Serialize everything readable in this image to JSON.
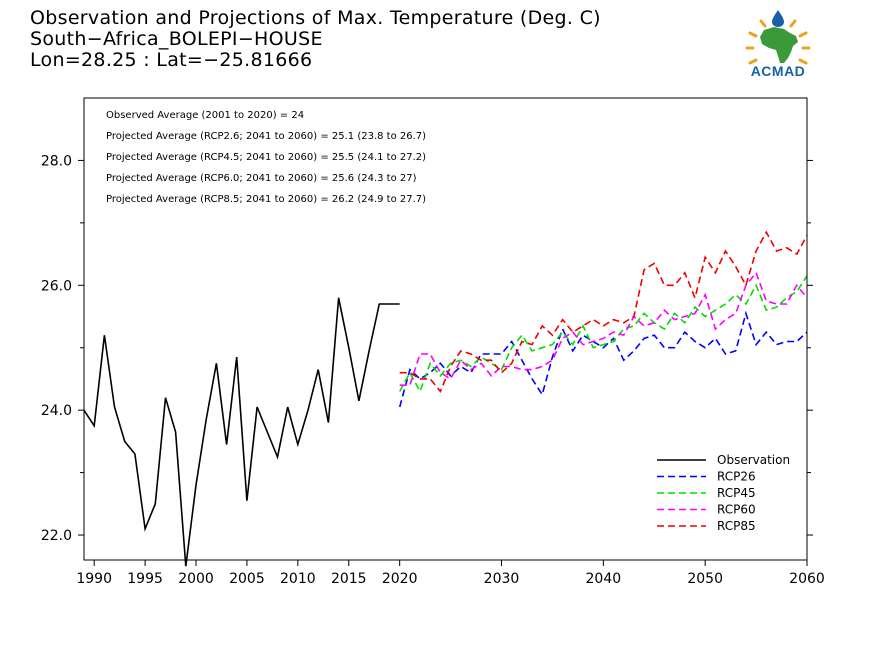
{
  "title_lines": [
    "Observation and Projections of Max. Temperature (Deg. C)",
    "South−Africa_BOLEPI−HOUSE",
    "Lon=28.25 : Lat=−25.81666"
  ],
  "logo": {
    "text": "ACMAD",
    "colors": {
      "africa": "#3a9a3a",
      "sun": "#f0a020",
      "drop": "#1a5fa8"
    }
  },
  "annotations": [
    "Observed Average (2001 to 2020) = 24",
    "Projected Average (RCP2.6; 2041 to 2060) = 25.1 (23.8 to 26.7)",
    "Projected Average (RCP4.5; 2041 to 2060) = 25.5 (24.1 to 27.2)",
    "Projected Average (RCP6.0; 2041 to 2060) = 25.6 (24.3 to 27)",
    "Projected Average (RCP8.5; 2041 to 2060) = 26.2 (24.9 to 27.7)"
  ],
  "chart_data": {
    "type": "line",
    "xlim": [
      1989,
      2060
    ],
    "ylim": [
      21.6,
      29.0
    ],
    "x_ticks": [
      {
        "v": 1990,
        "label": "1990"
      },
      {
        "v": 1995,
        "label": "1995"
      },
      {
        "v": 2000,
        "label": "2000"
      },
      {
        "v": 2005,
        "label": "2005"
      },
      {
        "v": 2010,
        "label": "2010"
      },
      {
        "v": 2015,
        "label": "2015"
      },
      {
        "v": 2020,
        "label": "2020"
      },
      {
        "v": 2030,
        "label": "2030"
      },
      {
        "v": 2040,
        "label": "2040"
      },
      {
        "v": 2050,
        "label": "2050"
      },
      {
        "v": 2060,
        "label": "2060"
      }
    ],
    "y_ticks": [
      {
        "v": 22.0,
        "label": "22.0"
      },
      {
        "v": 24.0,
        "label": "24.0"
      },
      {
        "v": 26.0,
        "label": "26.0"
      },
      {
        "v": 28.0,
        "label": "28.0"
      }
    ],
    "legend_position": "bottom-right",
    "series": [
      {
        "name": "Observation",
        "color": "#000000",
        "dashed": false,
        "x": [
          1989,
          1990,
          1991,
          1992,
          1993,
          1994,
          1995,
          1996,
          1997,
          1998,
          1999,
          2000,
          2001,
          2002,
          2003,
          2004,
          2005,
          2006,
          2007,
          2008,
          2009,
          2010,
          2011,
          2012,
          2013,
          2014,
          2015,
          2016,
          2017,
          2018,
          2019,
          2020
        ],
        "y": [
          24.0,
          23.75,
          25.2,
          24.05,
          23.5,
          23.3,
          22.1,
          22.5,
          24.2,
          23.65,
          21.5,
          22.8,
          23.85,
          24.75,
          23.45,
          24.85,
          22.55,
          24.05,
          23.65,
          23.25,
          24.05,
          23.45,
          24.0,
          24.65,
          23.8,
          25.8,
          25.0,
          24.15,
          24.95,
          25.7,
          25.7,
          25.7
        ]
      },
      {
        "name": "RCP26",
        "color": "#0000ff",
        "dashed": true,
        "x": [
          2020,
          2021,
          2022,
          2023,
          2024,
          2025,
          2026,
          2027,
          2028,
          2029,
          2030,
          2031,
          2032,
          2033,
          2034,
          2035,
          2036,
          2037,
          2038,
          2039,
          2040,
          2041,
          2042,
          2043,
          2044,
          2045,
          2046,
          2047,
          2048,
          2049,
          2050,
          2051,
          2052,
          2053,
          2054,
          2055,
          2056,
          2057,
          2058,
          2059,
          2060
        ],
        "y": [
          24.05,
          24.65,
          24.5,
          24.6,
          24.75,
          24.55,
          24.7,
          24.6,
          24.9,
          24.9,
          24.9,
          25.1,
          24.8,
          24.5,
          24.25,
          24.85,
          25.3,
          24.95,
          25.2,
          25.1,
          25.0,
          25.15,
          24.8,
          24.95,
          25.15,
          25.2,
          25.0,
          25.0,
          25.25,
          25.1,
          25.0,
          25.15,
          24.9,
          24.95,
          25.55,
          25.05,
          25.25,
          25.05,
          25.1,
          25.1,
          25.25
        ]
      },
      {
        "name": "RCP45",
        "color": "#00dd00",
        "dashed": true,
        "x": [
          2020,
          2021,
          2022,
          2023,
          2024,
          2025,
          2026,
          2027,
          2028,
          2029,
          2030,
          2031,
          2032,
          2033,
          2034,
          2035,
          2036,
          2037,
          2038,
          2039,
          2040,
          2041,
          2042,
          2043,
          2044,
          2045,
          2046,
          2047,
          2048,
          2049,
          2050,
          2051,
          2052,
          2053,
          2054,
          2055,
          2056,
          2057,
          2058,
          2059,
          2060
        ],
        "y": [
          24.3,
          24.6,
          24.3,
          24.75,
          24.55,
          24.75,
          24.8,
          24.7,
          24.85,
          24.75,
          24.65,
          25.0,
          25.2,
          24.95,
          25.0,
          25.05,
          25.25,
          25.05,
          25.35,
          25.0,
          25.05,
          25.1,
          25.3,
          25.35,
          25.55,
          25.4,
          25.3,
          25.55,
          25.4,
          25.65,
          25.5,
          25.6,
          25.7,
          25.85,
          25.7,
          26.0,
          25.6,
          25.65,
          25.8,
          25.9,
          26.15
        ]
      },
      {
        "name": "RCP60",
        "color": "#ff00ff",
        "dashed": true,
        "x": [
          2020,
          2021,
          2022,
          2023,
          2024,
          2025,
          2026,
          2027,
          2028,
          2029,
          2030,
          2031,
          2032,
          2033,
          2034,
          2035,
          2036,
          2037,
          2038,
          2039,
          2040,
          2041,
          2042,
          2043,
          2044,
          2045,
          2046,
          2047,
          2048,
          2049,
          2050,
          2051,
          2052,
          2053,
          2054,
          2055,
          2056,
          2057,
          2058,
          2059,
          2060
        ],
        "y": [
          24.4,
          24.4,
          24.9,
          24.9,
          24.6,
          24.5,
          24.8,
          24.65,
          24.75,
          24.55,
          24.7,
          24.7,
          24.65,
          24.65,
          24.7,
          24.8,
          25.15,
          25.25,
          25.05,
          25.1,
          25.15,
          25.25,
          25.2,
          25.5,
          25.35,
          25.4,
          25.6,
          25.45,
          25.5,
          25.55,
          25.85,
          25.3,
          25.45,
          25.55,
          26.0,
          26.2,
          25.75,
          25.7,
          25.7,
          26.0,
          25.8
        ]
      },
      {
        "name": "RCP85",
        "color": "#ee0000",
        "dashed": true,
        "x": [
          2020,
          2021,
          2022,
          2023,
          2024,
          2025,
          2026,
          2027,
          2028,
          2029,
          2030,
          2031,
          2032,
          2033,
          2034,
          2035,
          2036,
          2037,
          2038,
          2039,
          2040,
          2041,
          2042,
          2043,
          2044,
          2045,
          2046,
          2047,
          2048,
          2049,
          2050,
          2051,
          2052,
          2053,
          2054,
          2055,
          2056,
          2057,
          2058,
          2059,
          2060
        ],
        "y": [
          24.6,
          24.6,
          24.5,
          24.5,
          24.3,
          24.7,
          24.95,
          24.9,
          24.8,
          24.8,
          24.6,
          24.75,
          25.1,
          25.05,
          25.35,
          25.2,
          25.45,
          25.25,
          25.35,
          25.45,
          25.35,
          25.45,
          25.4,
          25.5,
          26.25,
          26.35,
          26.0,
          26.0,
          26.2,
          25.8,
          26.45,
          26.2,
          26.55,
          26.3,
          26.0,
          26.55,
          26.85,
          26.55,
          26.6,
          26.5,
          26.8
        ]
      }
    ]
  }
}
